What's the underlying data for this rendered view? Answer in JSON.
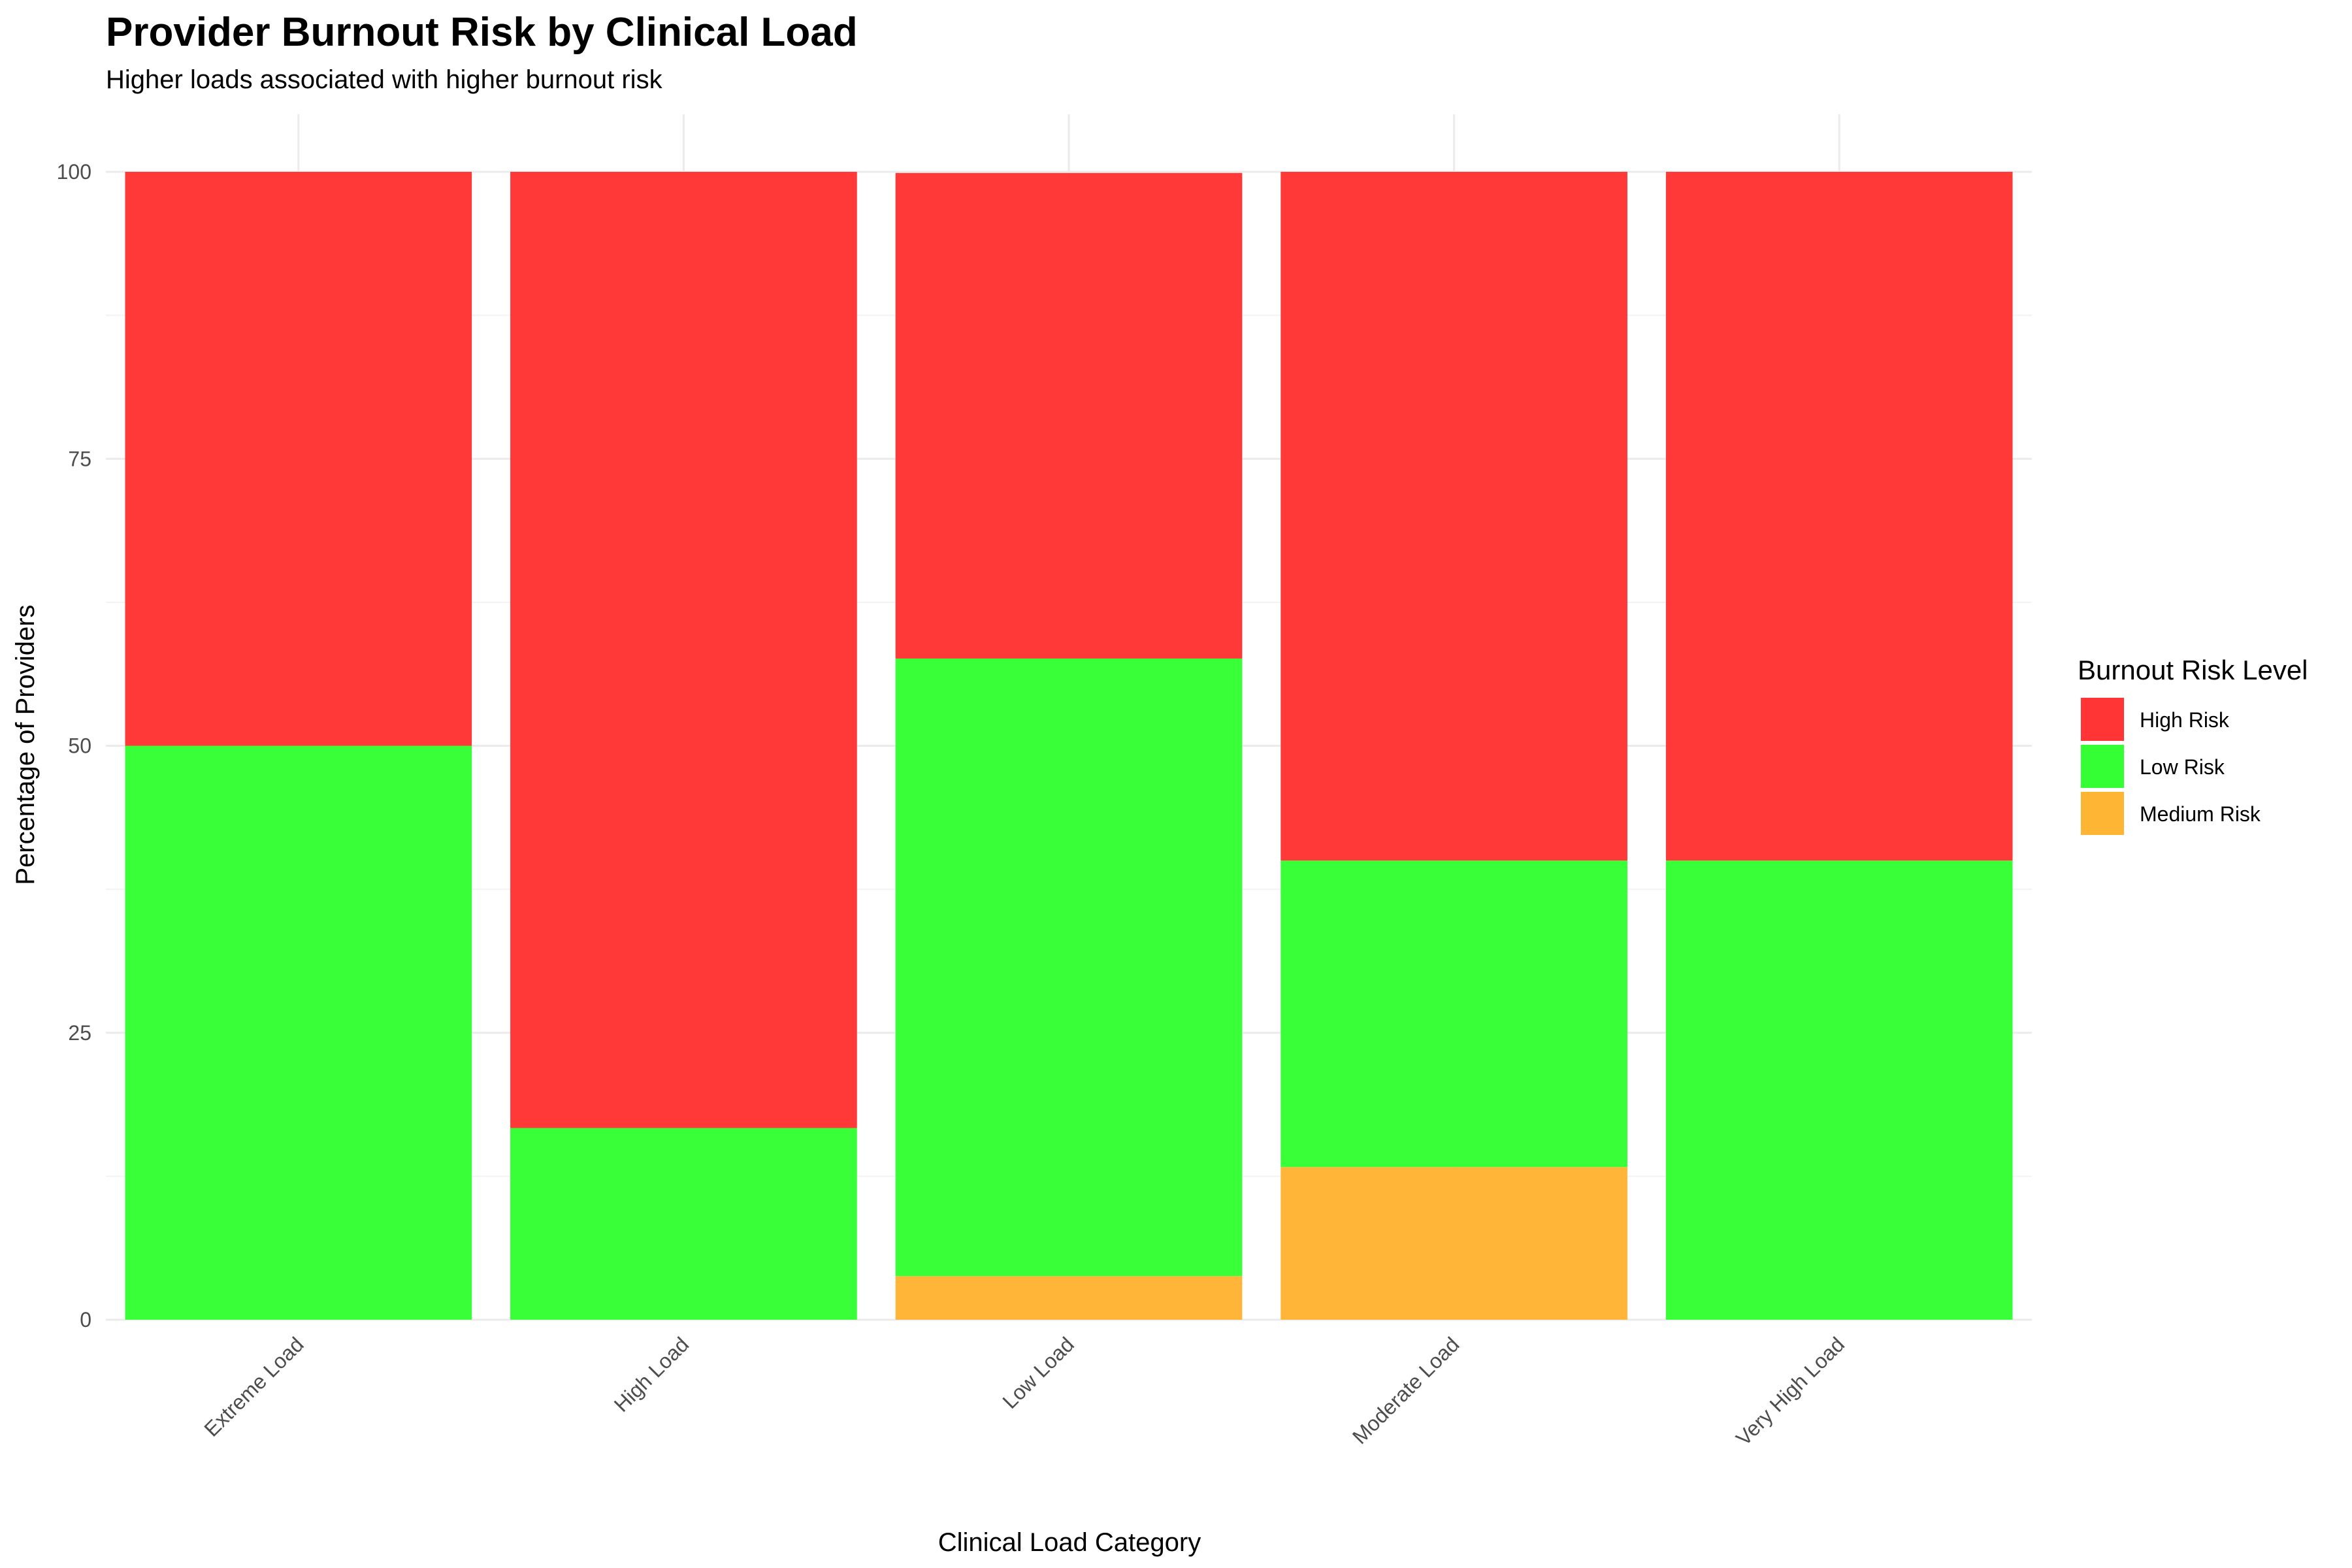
{
  "chart_data": {
    "type": "bar",
    "stacked": true,
    "title": "Provider Burnout Risk by Clinical Load",
    "subtitle": "Higher loads associated with higher burnout risk",
    "xlabel": "Clinical Load Category",
    "ylabel": "Percentage of Providers",
    "categories": [
      "Extreme Load",
      "High Load",
      "Low Load",
      "Moderate Load",
      "Very High Load"
    ],
    "series": [
      {
        "name": "Medium Risk",
        "color": "#FFB534",
        "values": [
          0,
          0,
          3.8,
          13.3,
          0
        ]
      },
      {
        "name": "Low Risk",
        "color": "#34FF34",
        "values": [
          50,
          16.7,
          53.8,
          26.7,
          40
        ]
      },
      {
        "name": "High Risk",
        "color": "#FF3434",
        "values": [
          50,
          83.3,
          42.3,
          60,
          60
        ]
      }
    ],
    "ylim": [
      0,
      100
    ],
    "yticks": [
      0,
      25,
      50,
      75,
      100
    ],
    "grid": true,
    "legend": {
      "title": "Burnout Risk Level",
      "position": "right",
      "order": [
        "High Risk",
        "Low Risk",
        "Medium Risk"
      ]
    }
  }
}
